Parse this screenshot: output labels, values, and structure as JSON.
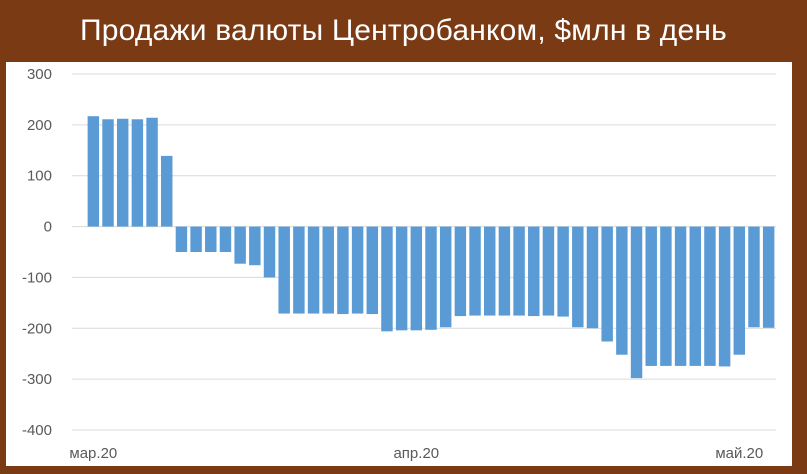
{
  "title": "Продажи валюты Центробанком, $млн в день",
  "chart_data": {
    "type": "bar",
    "title": "Продажи валюты Центробанком, $млн в день",
    "xlabel": "",
    "ylabel": "",
    "ylim": [
      -400,
      300
    ],
    "yticks": [
      300,
      200,
      100,
      0,
      -100,
      -200,
      -300,
      -400
    ],
    "grid": true,
    "bar_color": "#5b9bd5",
    "x_tick_labels": [
      {
        "label": "мар.20",
        "index": 0
      },
      {
        "label": "апр.20",
        "index": 22
      },
      {
        "label": "май.20",
        "index": 44
      }
    ],
    "values": [
      217,
      211,
      212,
      211,
      214,
      139,
      -50,
      -50,
      -50,
      -50,
      -73,
      -76,
      -100,
      -171,
      -171,
      -171,
      -171,
      -172,
      -171,
      -172,
      -206,
      -204,
      -204,
      -203,
      -198,
      -176,
      -175,
      -175,
      -175,
      -175,
      -176,
      -175,
      -177,
      -198,
      -200,
      -226,
      -252,
      -298,
      -274,
      -274,
      -274,
      -274,
      -274,
      -275,
      -252,
      -198,
      -199
    ]
  },
  "colors": {
    "frame": "#7a3a14",
    "bars": "#5b9bd5",
    "grid": "#d9d9d9",
    "text": "#595959"
  }
}
